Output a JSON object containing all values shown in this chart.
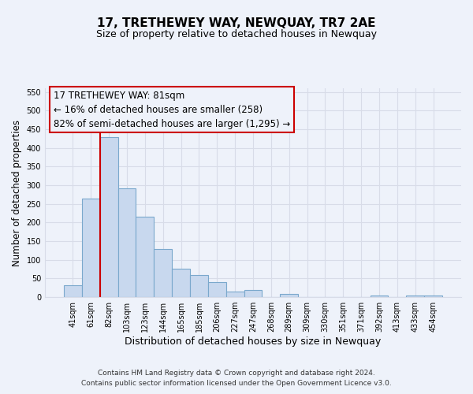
{
  "title": "17, TRETHEWEY WAY, NEWQUAY, TR7 2AE",
  "subtitle": "Size of property relative to detached houses in Newquay",
  "xlabel": "Distribution of detached houses by size in Newquay",
  "ylabel": "Number of detached properties",
  "bar_color": "#c8d8ee",
  "bar_edge_color": "#7aa8cc",
  "marker_color": "#cc0000",
  "marker_x": "82sqm",
  "categories": [
    "41sqm",
    "61sqm",
    "82sqm",
    "103sqm",
    "123sqm",
    "144sqm",
    "165sqm",
    "185sqm",
    "206sqm",
    "227sqm",
    "247sqm",
    "268sqm",
    "289sqm",
    "309sqm",
    "330sqm",
    "351sqm",
    "371sqm",
    "392sqm",
    "413sqm",
    "433sqm",
    "454sqm"
  ],
  "values": [
    32,
    265,
    428,
    291,
    215,
    130,
    76,
    59,
    40,
    15,
    19,
    0,
    9,
    0,
    0,
    0,
    0,
    4,
    0,
    5,
    4
  ],
  "ylim": [
    0,
    560
  ],
  "yticks": [
    0,
    50,
    100,
    150,
    200,
    250,
    300,
    350,
    400,
    450,
    500,
    550
  ],
  "annotation_title": "17 TRETHEWEY WAY: 81sqm",
  "annotation_line1": "← 16% of detached houses are smaller (258)",
  "annotation_line2": "82% of semi-detached houses are larger (1,295) →",
  "footnote1": "Contains HM Land Registry data © Crown copyright and database right 2024.",
  "footnote2": "Contains public sector information licensed under the Open Government Licence v3.0.",
  "background_color": "#eef2fa",
  "grid_color": "#d8dce8",
  "box_edge_color": "#cc0000",
  "box_face_color": "#eef2fa"
}
